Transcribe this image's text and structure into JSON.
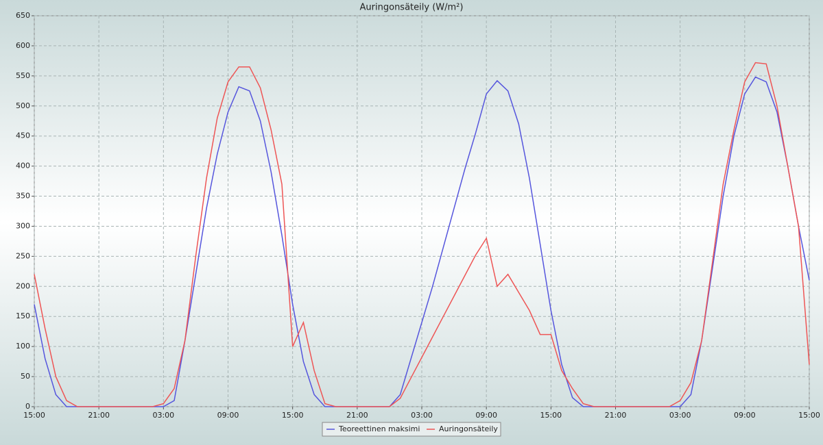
{
  "chart_data": {
    "type": "line",
    "title": "Auringonsäteily (W/m²)",
    "x": [
      0,
      1,
      2,
      3,
      4,
      5,
      6,
      7,
      8,
      9,
      10,
      11,
      12,
      13,
      14,
      15,
      16,
      17,
      18,
      19,
      20,
      21,
      22,
      23,
      24,
      25,
      26,
      27,
      28,
      29,
      30,
      31,
      32,
      33,
      34,
      35,
      36,
      37,
      38,
      39,
      40,
      41,
      42,
      43,
      44,
      45,
      46,
      47,
      48,
      49,
      50,
      51,
      52,
      53,
      54,
      55,
      56,
      57,
      58,
      59,
      60,
      61,
      62,
      63,
      64,
      65,
      66,
      67,
      68,
      69,
      70,
      71,
      72
    ],
    "series": [
      {
        "name": "Teoreettinen maksimi",
        "color": "#5555dd",
        "values": [
          170,
          80,
          20,
          0,
          0,
          0,
          0,
          0,
          0,
          0,
          0,
          0,
          0,
          10,
          110,
          220,
          330,
          420,
          490,
          532,
          525,
          475,
          390,
          285,
          170,
          75,
          20,
          0,
          0,
          0,
          0,
          0,
          0,
          0,
          20,
          80,
          140,
          200,
          265,
          330,
          395,
          455,
          520,
          542,
          525,
          470,
          380,
          270,
          160,
          70,
          15,
          0,
          0,
          0,
          0,
          0,
          0,
          0,
          0,
          0,
          0,
          20,
          110,
          230,
          350,
          450,
          520,
          548,
          540,
          490,
          400,
          300,
          210
        ]
      },
      {
        "name": "Auringonsäteily",
        "color": "#ee5555",
        "values": [
          220,
          130,
          50,
          10,
          0,
          0,
          0,
          0,
          0,
          0,
          0,
          0,
          5,
          30,
          110,
          250,
          380,
          480,
          540,
          565,
          565,
          530,
          460,
          370,
          100,
          140,
          60,
          5,
          0,
          0,
          0,
          0,
          0,
          0,
          14,
          48,
          82,
          116,
          150,
          184,
          218,
          252,
          280,
          200,
          220,
          190,
          160,
          120,
          120,
          60,
          30,
          5,
          0,
          0,
          0,
          0,
          0,
          0,
          0,
          0,
          10,
          40,
          110,
          240,
          370,
          460,
          540,
          572,
          570,
          500,
          400,
          300,
          70
        ]
      }
    ],
    "xlim": [
      0,
      72
    ],
    "xticks": [
      {
        "value": 0,
        "label": "15:00"
      },
      {
        "value": 6,
        "label": "21:00"
      },
      {
        "value": 12,
        "label": "03:00"
      },
      {
        "value": 18,
        "label": "09:00"
      },
      {
        "value": 24,
        "label": "15:00"
      },
      {
        "value": 30,
        "label": "21:00"
      },
      {
        "value": 36,
        "label": "03:00"
      },
      {
        "value": 42,
        "label": "09:00"
      },
      {
        "value": 48,
        "label": "15:00"
      },
      {
        "value": 54,
        "label": "21:00"
      },
      {
        "value": 60,
        "label": "03:00"
      },
      {
        "value": 66,
        "label": "09:00"
      },
      {
        "value": 72,
        "label": "15:00"
      }
    ],
    "ylim": [
      0,
      650
    ],
    "yticks": [
      0,
      50,
      100,
      150,
      200,
      250,
      300,
      350,
      400,
      450,
      500,
      550,
      600,
      650
    ],
    "grid": true,
    "legend": "bottom"
  }
}
